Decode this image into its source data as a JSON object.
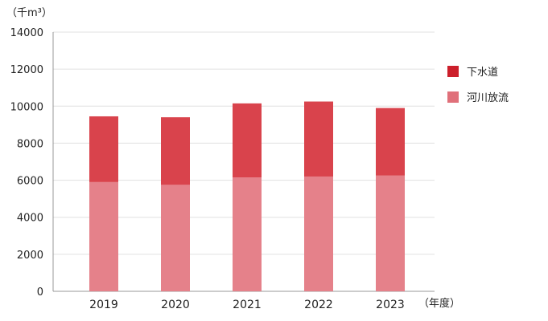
{
  "chart_data": {
    "type": "bar",
    "stacked": true,
    "categories": [
      "2019",
      "2020",
      "2021",
      "2022",
      "2023"
    ],
    "series": [
      {
        "name": "河川放流",
        "values": [
          5900,
          5750,
          6150,
          6200,
          6250
        ],
        "color": "#e5818a"
      },
      {
        "name": "下水道",
        "values": [
          3550,
          3650,
          4000,
          4050,
          3650
        ],
        "color": "#d9434c"
      }
    ],
    "ylim": [
      0,
      14000
    ],
    "yticks": [
      0,
      2000,
      4000,
      6000,
      8000,
      10000,
      12000,
      14000
    ],
    "ylabel": "（千m³）",
    "xlabel": "（年度）",
    "grid": true,
    "legend_position": "right",
    "legend_order": [
      "下水道",
      "河川放流"
    ],
    "legend_colors": {
      "下水道": "#cc1f2b",
      "河川放流": "#e0707a"
    }
  }
}
